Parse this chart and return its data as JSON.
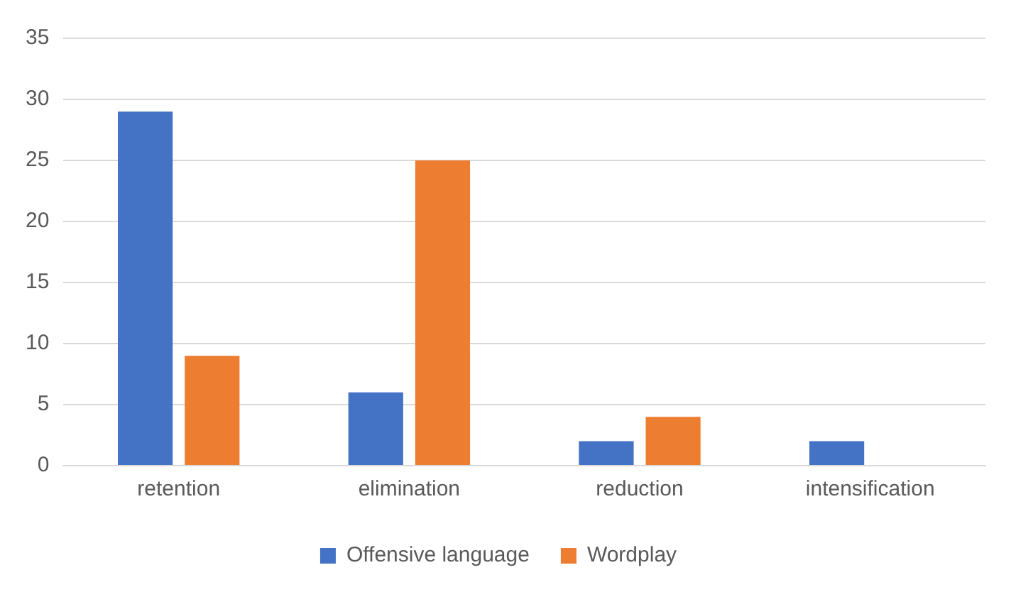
{
  "chart_data": {
    "type": "bar",
    "categories": [
      "retention",
      "elimination",
      "reduction",
      "intensification"
    ],
    "series": [
      {
        "name": "Offensive language",
        "color": "#4472c4",
        "values": [
          29,
          6,
          2,
          2
        ]
      },
      {
        "name": "Wordplay",
        "color": "#ed7d31",
        "values": [
          9,
          25,
          4,
          0
        ]
      }
    ],
    "ylim": [
      0,
      35
    ],
    "yticks": [
      0,
      5,
      10,
      15,
      20,
      25,
      30,
      35
    ],
    "grid": "y",
    "legend": "bottom"
  }
}
